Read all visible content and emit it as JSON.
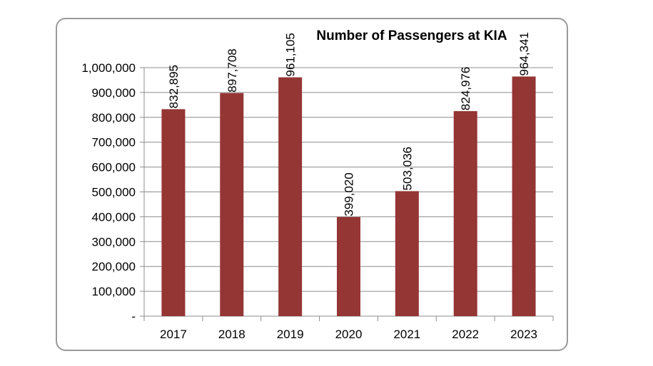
{
  "chart_data": {
    "type": "bar",
    "title": "Number of Passengers at KIA",
    "xlabel": "",
    "ylabel": "",
    "categories": [
      "2017",
      "2018",
      "2019",
      "2020",
      "2021",
      "2022",
      "2023"
    ],
    "values": [
      832895,
      897708,
      961105,
      399020,
      503036,
      824976,
      964341
    ],
    "data_labels": [
      "832,895",
      "897,708",
      "961,105",
      "399,020",
      "503,036",
      "824,976",
      "964,341"
    ],
    "ylim": [
      0,
      1000000
    ],
    "y_ticks": [
      0,
      100000,
      200000,
      300000,
      400000,
      500000,
      600000,
      700000,
      800000,
      900000,
      1000000
    ],
    "y_tick_labels": [
      "-",
      "100,000",
      "200,000",
      "300,000",
      "400,000",
      "500,000",
      "600,000",
      "700,000",
      "800,000",
      "900,000",
      "1,000,000"
    ],
    "grid": true,
    "legend": "none",
    "bar_color": "#943634"
  }
}
